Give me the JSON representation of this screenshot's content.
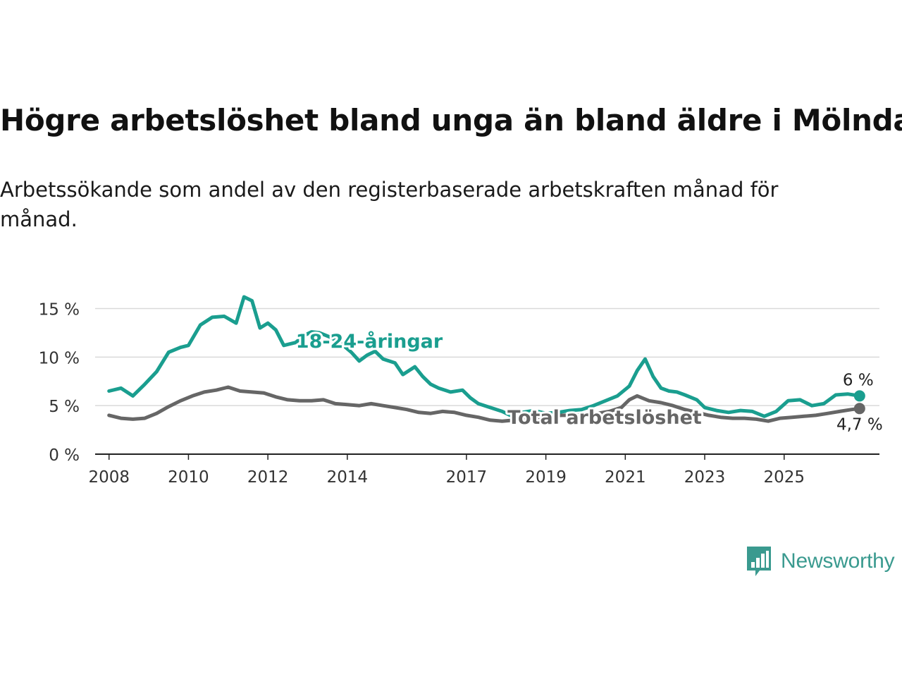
{
  "title": "Högre arbetslöshet bland unga än bland äldre i Mölndal",
  "subtitle": "Arbetssökande som andel av den registerbaserade arbetskraften månad för månad.",
  "brand": {
    "name": "Newsworthy",
    "color": "#3a9a8f",
    "icon": "bar-chart-speech-bubble-icon"
  },
  "chart_data": {
    "type": "line",
    "x_ticks": [
      "2008",
      "2010",
      "2012",
      "2014",
      "2017",
      "2019",
      "2021",
      "2023",
      "2025"
    ],
    "y_ticks": [
      "0 %",
      "5 %",
      "10 %",
      "15 %"
    ],
    "ylim": [
      0,
      17
    ],
    "grid": true,
    "series": [
      {
        "name": "18-24-åringar",
        "color": "#1a9e8f",
        "end_label": "6 %",
        "points": [
          [
            2008.0,
            6.5
          ],
          [
            2008.3,
            6.8
          ],
          [
            2008.6,
            6.0
          ],
          [
            2008.9,
            7.2
          ],
          [
            2009.2,
            8.5
          ],
          [
            2009.5,
            10.5
          ],
          [
            2009.8,
            11.0
          ],
          [
            2010.0,
            11.2
          ],
          [
            2010.3,
            13.3
          ],
          [
            2010.6,
            14.1
          ],
          [
            2010.9,
            14.2
          ],
          [
            2011.2,
            13.5
          ],
          [
            2011.4,
            16.2
          ],
          [
            2011.6,
            15.8
          ],
          [
            2011.8,
            13.0
          ],
          [
            2012.0,
            13.5
          ],
          [
            2012.2,
            12.8
          ],
          [
            2012.4,
            11.2
          ],
          [
            2012.7,
            11.5
          ],
          [
            2012.9,
            12.2
          ],
          [
            2013.1,
            12.6
          ],
          [
            2013.3,
            12.5
          ],
          [
            2013.6,
            12.0
          ],
          [
            2013.9,
            11.2
          ],
          [
            2014.1,
            10.5
          ],
          [
            2014.3,
            9.6
          ],
          [
            2014.5,
            10.2
          ],
          [
            2014.7,
            10.6
          ],
          [
            2014.9,
            9.8
          ],
          [
            2015.2,
            9.4
          ],
          [
            2015.4,
            8.2
          ],
          [
            2015.7,
            9.0
          ],
          [
            2015.9,
            8.0
          ],
          [
            2016.1,
            7.2
          ],
          [
            2016.3,
            6.8
          ],
          [
            2016.6,
            6.4
          ],
          [
            2016.9,
            6.6
          ],
          [
            2017.1,
            5.8
          ],
          [
            2017.3,
            5.2
          ],
          [
            2017.6,
            4.8
          ],
          [
            2017.9,
            4.4
          ],
          [
            2018.1,
            4.0
          ],
          [
            2018.4,
            4.3
          ],
          [
            2018.7,
            4.5
          ],
          [
            2019.0,
            4.2
          ],
          [
            2019.3,
            4.3
          ],
          [
            2019.6,
            4.5
          ],
          [
            2019.9,
            4.6
          ],
          [
            2020.2,
            5.0
          ],
          [
            2020.5,
            5.5
          ],
          [
            2020.8,
            6.0
          ],
          [
            2021.1,
            7.0
          ],
          [
            2021.3,
            8.6
          ],
          [
            2021.5,
            9.8
          ],
          [
            2021.7,
            8.0
          ],
          [
            2021.9,
            6.8
          ],
          [
            2022.1,
            6.5
          ],
          [
            2022.3,
            6.4
          ],
          [
            2022.5,
            6.1
          ],
          [
            2022.8,
            5.6
          ],
          [
            2023.0,
            4.8
          ],
          [
            2023.3,
            4.5
          ],
          [
            2023.6,
            4.3
          ],
          [
            2023.9,
            4.5
          ],
          [
            2024.2,
            4.4
          ],
          [
            2024.5,
            3.9
          ],
          [
            2024.8,
            4.4
          ],
          [
            2025.1,
            5.5
          ],
          [
            2025.4,
            5.6
          ],
          [
            2025.7,
            5.0
          ],
          [
            2026.0,
            5.2
          ],
          [
            2026.3,
            6.1
          ],
          [
            2026.6,
            6.2
          ],
          [
            2026.9,
            6.0
          ]
        ]
      },
      {
        "name": "Total arbetslöshet",
        "color": "#666666",
        "end_label": "4,7 %",
        "points": [
          [
            2008.0,
            4.0
          ],
          [
            2008.3,
            3.7
          ],
          [
            2008.6,
            3.6
          ],
          [
            2008.9,
            3.7
          ],
          [
            2009.2,
            4.2
          ],
          [
            2009.5,
            4.9
          ],
          [
            2009.8,
            5.5
          ],
          [
            2010.1,
            6.0
          ],
          [
            2010.4,
            6.4
          ],
          [
            2010.7,
            6.6
          ],
          [
            2011.0,
            6.9
          ],
          [
            2011.3,
            6.5
          ],
          [
            2011.6,
            6.4
          ],
          [
            2011.9,
            6.3
          ],
          [
            2012.2,
            5.9
          ],
          [
            2012.5,
            5.6
          ],
          [
            2012.8,
            5.5
          ],
          [
            2013.1,
            5.5
          ],
          [
            2013.4,
            5.6
          ],
          [
            2013.7,
            5.2
          ],
          [
            2014.0,
            5.1
          ],
          [
            2014.3,
            5.0
          ],
          [
            2014.6,
            5.2
          ],
          [
            2014.9,
            5.0
          ],
          [
            2015.2,
            4.8
          ],
          [
            2015.5,
            4.6
          ],
          [
            2015.8,
            4.3
          ],
          [
            2016.1,
            4.2
          ],
          [
            2016.4,
            4.4
          ],
          [
            2016.7,
            4.3
          ],
          [
            2017.0,
            4.0
          ],
          [
            2017.3,
            3.8
          ],
          [
            2017.6,
            3.5
          ],
          [
            2017.9,
            3.4
          ],
          [
            2018.2,
            3.5
          ],
          [
            2018.5,
            3.6
          ],
          [
            2018.8,
            3.8
          ],
          [
            2019.1,
            3.9
          ],
          [
            2019.4,
            4.0
          ],
          [
            2019.7,
            4.0
          ],
          [
            2020.0,
            4.1
          ],
          [
            2020.3,
            4.2
          ],
          [
            2020.6,
            4.4
          ],
          [
            2020.9,
            4.8
          ],
          [
            2021.1,
            5.6
          ],
          [
            2021.3,
            6.0
          ],
          [
            2021.6,
            5.5
          ],
          [
            2021.9,
            5.3
          ],
          [
            2022.2,
            5.0
          ],
          [
            2022.5,
            4.6
          ],
          [
            2022.8,
            4.3
          ],
          [
            2023.1,
            4.0
          ],
          [
            2023.4,
            3.8
          ],
          [
            2023.7,
            3.7
          ],
          [
            2024.0,
            3.7
          ],
          [
            2024.3,
            3.6
          ],
          [
            2024.6,
            3.4
          ],
          [
            2024.9,
            3.7
          ],
          [
            2025.2,
            3.8
          ],
          [
            2025.5,
            3.9
          ],
          [
            2025.8,
            4.0
          ],
          [
            2026.1,
            4.2
          ],
          [
            2026.4,
            4.4
          ],
          [
            2026.7,
            4.6
          ],
          [
            2026.9,
            4.7
          ]
        ]
      }
    ]
  }
}
